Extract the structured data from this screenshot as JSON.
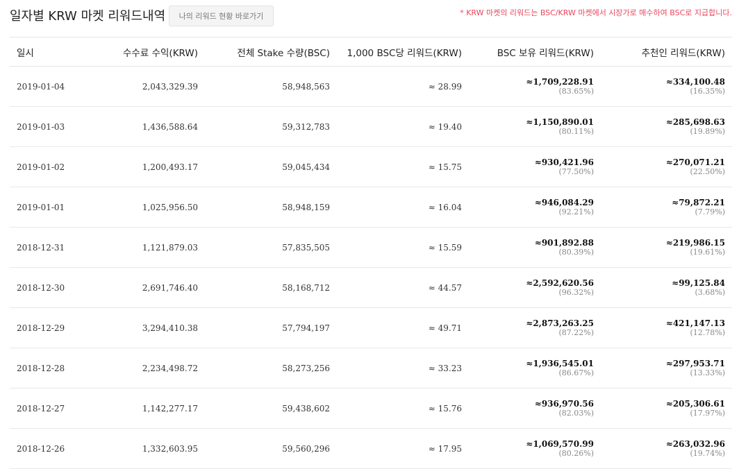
{
  "header": {
    "title": "일자별 KRW 마켓 리워드내역",
    "my_reward_button": "나의 리워드 현황 바로가기",
    "notice": "* KRW 마켓의 리워드는 BSC/KRW 마켓에서 시장가로 매수하여 BSC로 지급합니다."
  },
  "table": {
    "columns": [
      "일시",
      "수수료 수익(KRW)",
      "전체 Stake 수량(BSC)",
      "1,000 BSC당 리워드(KRW)",
      "BSC 보유 리워드(KRW)",
      "추천인 리워드(KRW)"
    ],
    "rows": [
      {
        "date": "2019-01-04",
        "fee": "2,043,329.39",
        "stake": "58,948,563",
        "per1000": "≈ 28.99",
        "holder": "≈1,709,228.91",
        "holder_pct": "(83.65%)",
        "referrer": "≈334,100.48",
        "referrer_pct": "(16.35%)"
      },
      {
        "date": "2019-01-03",
        "fee": "1,436,588.64",
        "stake": "59,312,783",
        "per1000": "≈ 19.40",
        "holder": "≈1,150,890.01",
        "holder_pct": "(80.11%)",
        "referrer": "≈285,698.63",
        "referrer_pct": "(19.89%)"
      },
      {
        "date": "2019-01-02",
        "fee": "1,200,493.17",
        "stake": "59,045,434",
        "per1000": "≈ 15.75",
        "holder": "≈930,421.96",
        "holder_pct": "(77.50%)",
        "referrer": "≈270,071.21",
        "referrer_pct": "(22.50%)"
      },
      {
        "date": "2019-01-01",
        "fee": "1,025,956.50",
        "stake": "58,948,159",
        "per1000": "≈ 16.04",
        "holder": "≈946,084.29",
        "holder_pct": "(92.21%)",
        "referrer": "≈79,872.21",
        "referrer_pct": "(7.79%)"
      },
      {
        "date": "2018-12-31",
        "fee": "1,121,879.03",
        "stake": "57,835,505",
        "per1000": "≈ 15.59",
        "holder": "≈901,892.88",
        "holder_pct": "(80.39%)",
        "referrer": "≈219,986.15",
        "referrer_pct": "(19.61%)"
      },
      {
        "date": "2018-12-30",
        "fee": "2,691,746.40",
        "stake": "58,168,712",
        "per1000": "≈ 44.57",
        "holder": "≈2,592,620.56",
        "holder_pct": "(96.32%)",
        "referrer": "≈99,125.84",
        "referrer_pct": "(3.68%)"
      },
      {
        "date": "2018-12-29",
        "fee": "3,294,410.38",
        "stake": "57,794,197",
        "per1000": "≈ 49.71",
        "holder": "≈2,873,263.25",
        "holder_pct": "(87.22%)",
        "referrer": "≈421,147.13",
        "referrer_pct": "(12.78%)"
      },
      {
        "date": "2018-12-28",
        "fee": "2,234,498.72",
        "stake": "58,273,256",
        "per1000": "≈ 33.23",
        "holder": "≈1,936,545.01",
        "holder_pct": "(86.67%)",
        "referrer": "≈297,953.71",
        "referrer_pct": "(13.33%)"
      },
      {
        "date": "2018-12-27",
        "fee": "1,142,277.17",
        "stake": "59,438,602",
        "per1000": "≈ 15.76",
        "holder": "≈936,970.56",
        "holder_pct": "(82.03%)",
        "referrer": "≈205,306.61",
        "referrer_pct": "(17.97%)"
      },
      {
        "date": "2018-12-26",
        "fee": "1,332,603.95",
        "stake": "59,560,296",
        "per1000": "≈ 17.95",
        "holder": "≈1,069,570.99",
        "holder_pct": "(80.26%)",
        "referrer": "≈263,032.96",
        "referrer_pct": "(19.74%)"
      }
    ]
  }
}
